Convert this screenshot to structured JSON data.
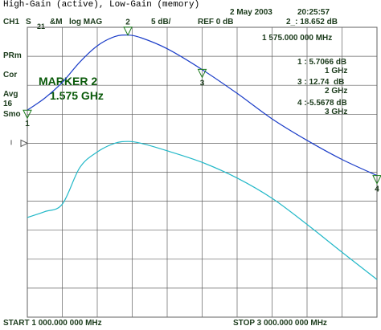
{
  "header": {
    "title": "High-Gain (active), Low-Gain (memory)",
    "date": "2 May 2003",
    "time": "20:25:57"
  },
  "status_bar": {
    "channel": "CH1",
    "param": "S",
    "param_sub": "21",
    "mode": "&M",
    "format": "log MAG",
    "scale": "5 dB/",
    "ref": "REF 0 dB",
    "active_marker_value": "2_: 18.652 dB",
    "active_marker_freq": "1 575.000 000 MHz"
  },
  "side_labels": {
    "prm": "PRm",
    "cor": "Cor",
    "avg": "Avg",
    "avg_count": "16",
    "smo": "Smo"
  },
  "marker_annotation": {
    "line1": "MARKER 2",
    "line2": "1.575 GHz"
  },
  "marker_table": [
    {
      "id": "1",
      "value": "1 : 5.7066 dB",
      "freq": "1 GHz"
    },
    {
      "id": "3",
      "value": "3 : 12.74  dB",
      "freq": "2 GHz"
    },
    {
      "id": "4",
      "value": "4 :-5.5678 dB",
      "freq": "3 GHz"
    }
  ],
  "footer": {
    "start": "START 1 000.000 000 MHz",
    "stop": "STOP 3 000.000 000 MHz"
  },
  "colors": {
    "active_trace": "#1a3cc8",
    "memory_trace": "#22b8c8",
    "grid": "#606060",
    "marker": "#1a7a1a",
    "text_green": "#0a5a0a"
  },
  "chart_data": {
    "type": "line",
    "title": "High-Gain (active), Low-Gain (memory)",
    "xlabel": "",
    "ylabel": "",
    "x_unit": "MHz",
    "y_unit": "dB",
    "xlim": [
      1000,
      3000
    ],
    "ylim": [
      -30,
      20
    ],
    "grid": true,
    "series": [
      {
        "name": "High-Gain (active)",
        "x": [
          1000,
          1100,
          1200,
          1300,
          1400,
          1500,
          1575,
          1650,
          1800,
          2000,
          2200,
          2400,
          2600,
          2800,
          3000
        ],
        "values": [
          5.7,
          7.8,
          10.5,
          14.0,
          16.8,
          18.4,
          18.65,
          18.2,
          16.3,
          12.7,
          8.6,
          4.2,
          0.5,
          -2.8,
          -5.57
        ]
      },
      {
        "name": "Low-Gain (memory)",
        "x": [
          1000,
          1100,
          1200,
          1300,
          1400,
          1500,
          1575,
          1650,
          1800,
          2000,
          2200,
          2400,
          2600,
          2800,
          3000
        ],
        "values": [
          -12.8,
          -11.8,
          -10.5,
          -4.2,
          -1.5,
          0.0,
          0.3,
          0.0,
          -1.3,
          -3.3,
          -6.0,
          -9.5,
          -14.0,
          -18.8,
          -23.5
        ]
      }
    ],
    "markers": [
      {
        "id": "1",
        "x": 1000,
        "y": 5.7066
      },
      {
        "id": "2",
        "x": 1575,
        "y": 18.652
      },
      {
        "id": "3",
        "x": 2000,
        "y": 12.74
      },
      {
        "id": "4",
        "x": 3000,
        "y": -5.5678
      }
    ]
  }
}
